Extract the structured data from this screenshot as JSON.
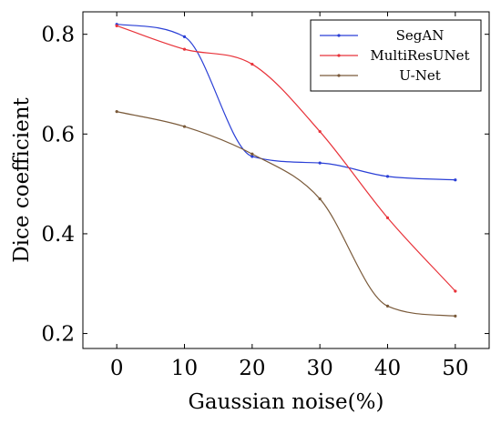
{
  "chart_data": {
    "type": "line",
    "xlabel": "Gaussian noise(%)",
    "ylabel": "Dice coefficient",
    "xlim": [
      -5,
      55
    ],
    "ylim": [
      0.17,
      0.845
    ],
    "xticks": [
      0,
      10,
      20,
      30,
      40,
      50
    ],
    "yticks": [
      0.2,
      0.4,
      0.6,
      0.8
    ],
    "xtick_labels": [
      "0",
      "10",
      "20",
      "30",
      "40",
      "50"
    ],
    "ytick_labels": [
      "0.2",
      "0.4",
      "0.6",
      "0.8"
    ],
    "grid": false,
    "legend_position": "top-right",
    "series": [
      {
        "name": "SegAN",
        "color": "#2a3fd6",
        "x": [
          0,
          10,
          20,
          30,
          40,
          50
        ],
        "y": [
          0.82,
          0.795,
          0.555,
          0.542,
          0.515,
          0.508
        ]
      },
      {
        "name": "MultiResUNet",
        "color": "#e8333a",
        "x": [
          0,
          10,
          20,
          30,
          40,
          50
        ],
        "y": [
          0.817,
          0.77,
          0.74,
          0.605,
          0.432,
          0.285
        ]
      },
      {
        "name": "U-Net",
        "color": "#7a5a3a",
        "x": [
          0,
          10,
          20,
          30,
          40,
          50
        ],
        "y": [
          0.645,
          0.615,
          0.56,
          0.47,
          0.255,
          0.235
        ]
      }
    ]
  }
}
